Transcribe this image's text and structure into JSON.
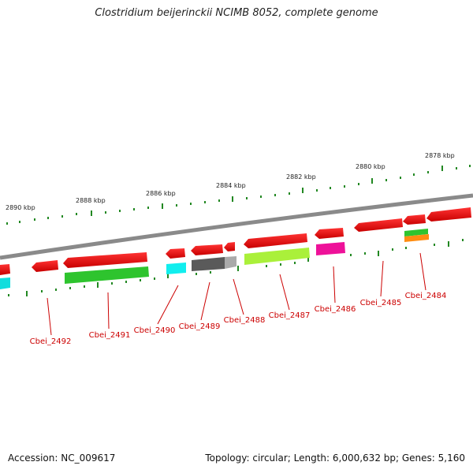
{
  "title": "Clostridium beijerinckii NCIMB 8052, complete genome",
  "ticks": [
    {
      "label": "2890 kbp"
    },
    {
      "label": "2888 kbp"
    },
    {
      "label": "2886 kbp"
    },
    {
      "label": "2884 kbp"
    },
    {
      "label": "2882 kbp"
    },
    {
      "label": "2880 kbp"
    },
    {
      "label": "2878 kbp"
    }
  ],
  "genes": [
    {
      "label": "Cbei_2492",
      "color": "#dd0000"
    },
    {
      "label": "Cbei_2491",
      "color": "#dd0000"
    },
    {
      "label": "Cbei_2490",
      "color": "#dd0000"
    },
    {
      "label": "Cbei_2489",
      "color": "#dd0000"
    },
    {
      "label": "Cbei_2488",
      "color": "#dd0000"
    },
    {
      "label": "Cbei_2487",
      "color": "#dd0000"
    },
    {
      "label": "Cbei_2486",
      "color": "#dd0000"
    },
    {
      "label": "Cbei_2485",
      "color": "#dd0000"
    },
    {
      "label": "Cbei_2484",
      "color": "#dd0000"
    }
  ],
  "footer": {
    "accession": "Accession: NC_009617",
    "summary": "Topology: circular; Length: 6,000,632 bp; Genes: 5,160"
  }
}
